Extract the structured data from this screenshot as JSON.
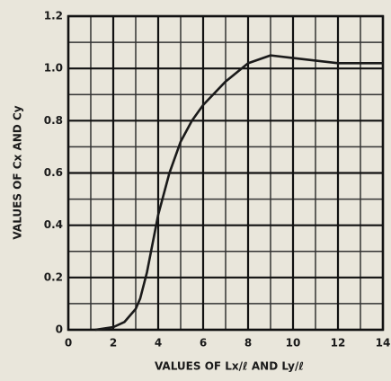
{
  "chart_data": {
    "type": "line",
    "x_label": "VALUES OF Lx/ℓ AND Ly/ℓ",
    "y_label": "VALUES OF Cx AND Cy",
    "series": [
      {
        "name": "Cx, Cy",
        "color": "#1a1a1a",
        "x": [
          1.2,
          2,
          2.5,
          3,
          3.2,
          3.5,
          4,
          4.5,
          5,
          5.5,
          6,
          7,
          8,
          9,
          10,
          11,
          12,
          13,
          14
        ],
        "values": [
          0,
          0.01,
          0.03,
          0.08,
          0.12,
          0.22,
          0.44,
          0.6,
          0.72,
          0.8,
          0.86,
          0.95,
          1.02,
          1.05,
          1.04,
          1.03,
          1.02,
          1.02,
          1.02
        ]
      }
    ],
    "xlim": [
      0,
      14
    ],
    "xticks": [
      0,
      2,
      4,
      6,
      8,
      10,
      12,
      14
    ],
    "ylim": [
      0,
      1.2
    ],
    "yticks": [
      0,
      0.2,
      0.4,
      0.6,
      0.8,
      {
        "value": 1.0,
        "label": "1.0"
      },
      1.2
    ],
    "grid": true,
    "minor_grid": true
  }
}
